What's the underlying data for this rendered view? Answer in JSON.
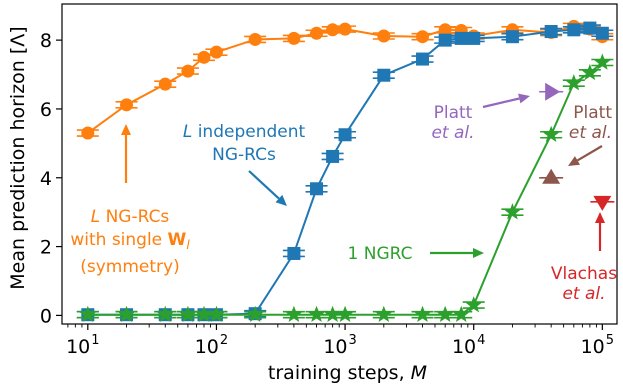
{
  "chart_data": {
    "type": "line",
    "xlabel": "training steps, M",
    "ylabel": "Mean prediction horizon [Λ]",
    "xscale": "log",
    "xlim": [
      6.3,
      130000
    ],
    "ylim": [
      -0.25,
      9.05
    ],
    "x_ticks": [
      {
        "value": 10,
        "base": "10",
        "exp": "1"
      },
      {
        "value": 100,
        "base": "10",
        "exp": "2"
      },
      {
        "value": 1000,
        "base": "10",
        "exp": "3"
      },
      {
        "value": 10000,
        "base": "10",
        "exp": "4"
      },
      {
        "value": 100000,
        "base": "10",
        "exp": "5"
      }
    ],
    "y_ticks": [
      0,
      2,
      4,
      6,
      8
    ],
    "series": [
      {
        "key": "orange",
        "color": "#ff7f0e",
        "marker": "circle",
        "x": [
          10,
          20,
          40,
          60,
          80,
          100,
          200,
          400,
          600,
          800,
          1000,
          2000,
          4000,
          6000,
          8000,
          10000,
          20000,
          40000,
          60000,
          80000,
          100000
        ],
        "y": [
          5.3,
          6.12,
          6.72,
          7.1,
          7.5,
          7.65,
          8.02,
          8.05,
          8.2,
          8.3,
          8.32,
          8.12,
          8.1,
          8.3,
          8.28,
          8.12,
          8.3,
          8.22,
          8.4,
          8.32,
          8.1
        ]
      },
      {
        "key": "blue",
        "color": "#1f77b4",
        "marker": "square",
        "x": [
          10,
          20,
          40,
          60,
          80,
          100,
          200,
          400,
          600,
          800,
          1000,
          2000,
          4000,
          6000,
          8000,
          10000,
          20000,
          40000,
          60000,
          80000,
          100000
        ],
        "y": [
          0.02,
          0.02,
          0.02,
          0.02,
          0.02,
          0.02,
          0.05,
          1.8,
          3.68,
          4.62,
          5.25,
          6.98,
          7.45,
          8.0,
          8.05,
          8.05,
          8.1,
          8.25,
          8.3,
          8.35,
          8.2
        ]
      },
      {
        "key": "green",
        "color": "#2ca02c",
        "marker": "star",
        "x": [
          10,
          20,
          40,
          60,
          80,
          100,
          200,
          400,
          600,
          800,
          1000,
          2000,
          4000,
          6000,
          8000,
          10000,
          20000,
          40000,
          60000,
          80000,
          100000
        ],
        "y": [
          0.02,
          0.02,
          0.02,
          0.02,
          0.02,
          0.02,
          0.02,
          0.02,
          0.02,
          0.02,
          0.02,
          0.02,
          0.02,
          0.02,
          0.02,
          0.3,
          3.0,
          5.25,
          6.75,
          7.05,
          7.35
        ]
      }
    ],
    "reference_points": [
      {
        "key": "platt_purple",
        "color": "#9467bd",
        "marker": "triangle-right",
        "x": 40000,
        "y": 6.5
      },
      {
        "key": "platt_brown",
        "color": "#8c564b",
        "marker": "triangle-up",
        "x": 40000,
        "y": 4.0
      },
      {
        "key": "vlachas",
        "color": "#d62728",
        "marker": "triangle-down",
        "x": 100000,
        "y": 3.3
      }
    ],
    "annotations": [
      {
        "key": "orange_label",
        "color": "#ff7f0e",
        "lines": [
          "L NG-RCs",
          "with single W",
          "(symmetry)"
        ]
      },
      {
        "key": "blue_label",
        "color": "#1f77b4",
        "lines": [
          "L independent",
          "NG-RCs"
        ]
      },
      {
        "key": "green_label",
        "color": "#2ca02c",
        "lines": [
          "1 NGRC"
        ]
      },
      {
        "key": "platt_purple_label",
        "color": "#9467bd",
        "lines": [
          "Platt",
          "et al."
        ]
      },
      {
        "key": "platt_brown_label",
        "color": "#8c564b",
        "lines": [
          "Platt",
          "et al."
        ]
      },
      {
        "key": "vlachas_label",
        "color": "#d62728",
        "lines": [
          "Vlachas",
          "et al."
        ]
      }
    ]
  }
}
